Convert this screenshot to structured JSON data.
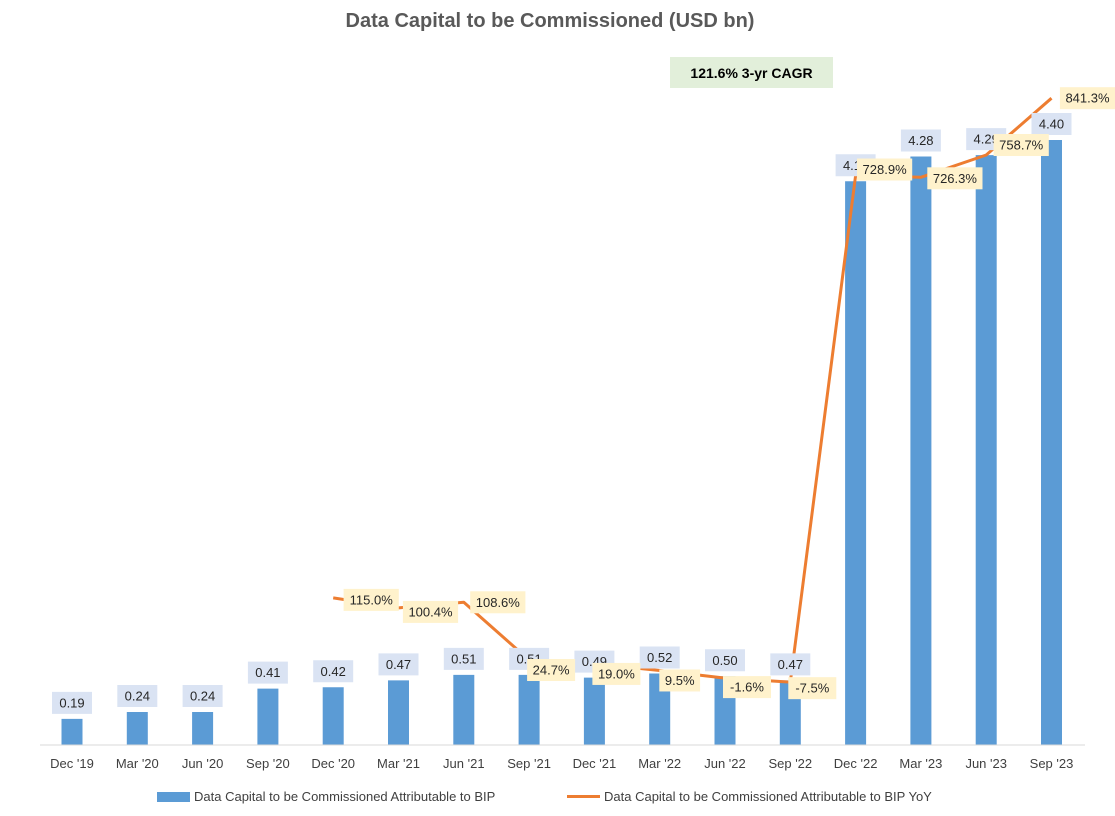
{
  "chart_data": {
    "type": "bar",
    "title": "Data Capital to be Commissioned (USD bn)",
    "annotation": "121.6% 3-yr CAGR",
    "categories": [
      "Dec '19",
      "Mar '20",
      "Jun '20",
      "Sep '20",
      "Dec '20",
      "Mar '21",
      "Jun '21",
      "Sep '21",
      "Dec '21",
      "Mar '22",
      "Jun '22",
      "Sep '22",
      "Dec '22",
      "Mar '23",
      "Jun '23",
      "Sep '23"
    ],
    "series": [
      {
        "name": "Data Capital to be Commissioned Attributable to BIP",
        "type": "bar",
        "color": "#5b9bd5",
        "values": [
          0.19,
          0.24,
          0.24,
          0.41,
          0.42,
          0.47,
          0.51,
          0.51,
          0.49,
          0.52,
          0.5,
          0.47,
          4.1,
          4.28,
          4.29,
          4.4
        ],
        "labels": [
          "0.19",
          "0.24",
          "0.24",
          "0.41",
          "0.42",
          "0.47",
          "0.51",
          "0.51",
          "0.49",
          "0.52",
          "0.50",
          "0.47",
          "4.10",
          "4.28",
          "4.29",
          "4.40"
        ]
      },
      {
        "name": "Data Capital to be Commissioned Attributable to BIP YoY",
        "type": "line",
        "color": "#ed7d31",
        "values": [
          null,
          null,
          null,
          null,
          115.0,
          100.4,
          108.6,
          24.7,
          19.0,
          9.5,
          -1.6,
          -7.5,
          728.9,
          726.3,
          758.7,
          841.3
        ],
        "labels": [
          null,
          null,
          null,
          null,
          "115.0%",
          "100.4%",
          "108.6%",
          "24.7%",
          "19.0%",
          "9.5%",
          "-1.6%",
          "-7.5%",
          "728.9%",
          "726.3%",
          "758.7%",
          "841.3%"
        ]
      }
    ],
    "ylim_bars": [
      0,
      5.0
    ],
    "ylim_line": [
      -105,
      970
    ],
    "grid": false,
    "legend_position": "bottom"
  }
}
